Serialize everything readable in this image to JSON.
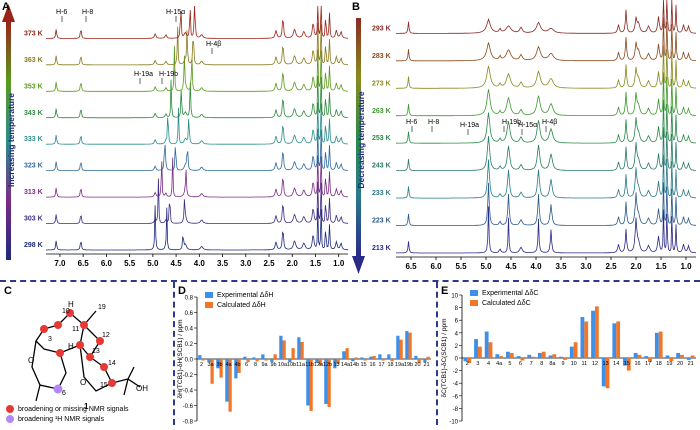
{
  "panels": {
    "A": {
      "label": "A",
      "axis_title": "Increasing temperature"
    },
    "B": {
      "label": "B",
      "axis_title": "Decreasing temperature"
    },
    "C": {
      "label": "C"
    },
    "D": {
      "label": "D"
    },
    "E": {
      "label": "E"
    }
  },
  "structure": {
    "compound_number": "1",
    "atom_labels": [
      "19",
      "10",
      "11",
      "H",
      "12",
      "3",
      "13",
      "H",
      "14",
      "O",
      "O",
      "15",
      "OH",
      "6"
    ],
    "legend": [
      {
        "text": "broadening or missing NMR signals",
        "color": "#e53935"
      },
      {
        "text": "broadening ¹H NMR signals",
        "color": "#b388ff"
      }
    ]
  },
  "colors": {
    "experimental": "#3d8fe8",
    "calculated": "#f0762a"
  },
  "chart_data": [
    {
      "type": "line",
      "name": "variable-temperature 1H NMR (heating)",
      "panel": "A",
      "x_ticks": [
        "7.0",
        "6.5",
        "6.0",
        "5.5",
        "5.0",
        "4.5",
        "4.0",
        "3.5",
        "3.0",
        "2.5",
        "2.0",
        "1.5",
        "1.0"
      ],
      "xlim": [
        7.3,
        0.8
      ],
      "series": [
        {
          "name": "298 K",
          "color": "#1d2a7a"
        },
        {
          "name": "303 K",
          "color": "#3c2d83"
        },
        {
          "name": "313 K",
          "color": "#7b2c85"
        },
        {
          "name": "323 K",
          "color": "#2f6a9c"
        },
        {
          "name": "333 K",
          "color": "#2a8e8a"
        },
        {
          "name": "343 K",
          "color": "#2e8a3e"
        },
        {
          "name": "353 K",
          "color": "#5a9a1e"
        },
        {
          "name": "363 K",
          "color": "#8a7a1e"
        },
        {
          "name": "373 K",
          "color": "#9a2418"
        }
      ],
      "annotations": [
        "H-6",
        "H-8",
        "H-15α",
        "H-4β",
        "H-19a",
        "H-19b"
      ]
    },
    {
      "type": "line",
      "name": "variable-temperature 1H NMR (cooling)",
      "panel": "B",
      "x_ticks": [
        "6.5",
        "6.0",
        "5.5",
        "5.0",
        "4.5",
        "4.0",
        "3.5",
        "3.0",
        "2.5",
        "2.0",
        "1.5",
        "1.0"
      ],
      "xlim": [
        6.8,
        0.8
      ],
      "series": [
        {
          "name": "293 K",
          "color": "#8a2a22"
        },
        {
          "name": "283 K",
          "color": "#8a4a1e"
        },
        {
          "name": "273 K",
          "color": "#8a8a1e"
        },
        {
          "name": "263 K",
          "color": "#3e9a2e"
        },
        {
          "name": "253 K",
          "color": "#2a8a4a"
        },
        {
          "name": "243 K",
          "color": "#2a7a6a"
        },
        {
          "name": "233 K",
          "color": "#2a7a8a"
        },
        {
          "name": "223 K",
          "color": "#2a5a8a"
        },
        {
          "name": "213 K",
          "color": "#2a2a8a"
        }
      ],
      "annotations": [
        "H-6",
        "H-8",
        "H-19a",
        "H-19b",
        "H-15α",
        "H-4β"
      ]
    },
    {
      "type": "bar",
      "panel": "D",
      "ylabel": "δH(TCB1)-δH(SCB1) / ppm",
      "ylim": [
        -0.8,
        0.8
      ],
      "yticks": [
        "0.8",
        "0.6",
        "0.4",
        "0.2",
        "0.0",
        "-0.2",
        "-0.4",
        "-0.6",
        "-0.8"
      ],
      "categories": [
        "2",
        "3a",
        "3b",
        "4a",
        "4b",
        "6",
        "8",
        "9a",
        "9b",
        "10a",
        "10b",
        "11a",
        "11b",
        "12a",
        "12b",
        "13",
        "14a",
        "14b",
        "15",
        "16",
        "17",
        "18",
        "19a",
        "19b",
        "20",
        "21"
      ],
      "series": [
        {
          "name": "Experimental ΔδH",
          "values": [
            0.05,
            -0.04,
            -0.12,
            -0.55,
            -0.25,
            0.03,
            0.02,
            0.06,
            -0.04,
            0.3,
            -0.04,
            0.28,
            -0.6,
            -0.05,
            -0.58,
            -0.12,
            0.1,
            -0.03,
            0.02,
            0.03,
            0.06,
            0.06,
            0.3,
            0.36,
            0.04,
            -0.04
          ]
        },
        {
          "name": "Calculated ΔδH",
          "values": [
            -0.02,
            -0.32,
            -0.24,
            -0.68,
            -0.18,
            -0.04,
            -0.03,
            -0.02,
            0.06,
            0.24,
            0.14,
            0.22,
            -0.67,
            -0.08,
            -0.62,
            -0.06,
            0.14,
            0.02,
            -0.02,
            0.04,
            -0.02,
            -0.03,
            0.25,
            0.34,
            -0.05,
            0.03
          ]
        }
      ]
    },
    {
      "type": "bar",
      "panel": "E",
      "ylabel": "δC(TCB1)-δC(SCB1) / ppm",
      "ylim": [
        -10,
        10
      ],
      "yticks": [
        "10",
        "8",
        "6",
        "4",
        "2",
        "0",
        "-2",
        "-4",
        "-6",
        "-8",
        "-10"
      ],
      "categories": [
        "2",
        "3",
        "4",
        "4a",
        "5",
        "6",
        "7",
        "8",
        "8a",
        "9",
        "10",
        "11",
        "12",
        "13",
        "14",
        "15",
        "16",
        "17",
        "18",
        "19",
        "20",
        "21"
      ],
      "series": [
        {
          "name": "Experimental ΔδC",
          "values": [
            -0.5,
            3.0,
            4.2,
            0.6,
            1.0,
            0.3,
            0.5,
            0.8,
            0.4,
            0.2,
            1.8,
            6.5,
            7.5,
            -4.5,
            5.5,
            -1.2,
            0.8,
            0.3,
            4.0,
            0.4,
            0.8,
            -0.3
          ]
        },
        {
          "name": "Calculated ΔδC",
          "values": [
            -0.8,
            1.8,
            2.5,
            0.3,
            0.8,
            -0.4,
            0.2,
            1.0,
            0.6,
            -0.3,
            2.5,
            5.8,
            8.2,
            -4.8,
            5.8,
            -2.0,
            0.5,
            -0.6,
            4.2,
            -0.5,
            0.5,
            0.4
          ]
        }
      ]
    }
  ]
}
